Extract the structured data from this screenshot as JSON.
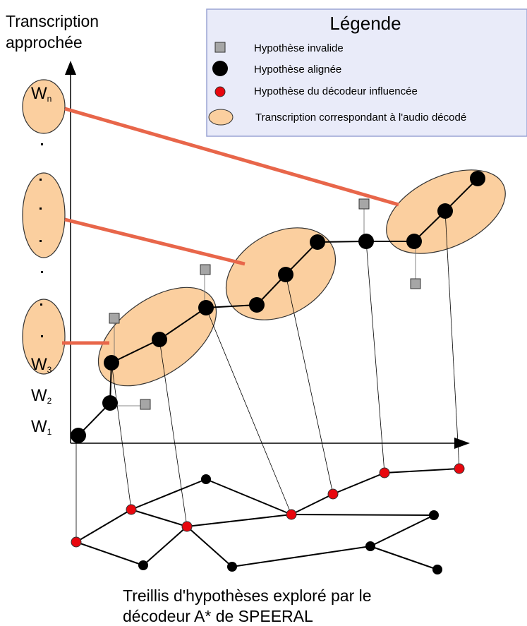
{
  "y_axis_title": [
    "Transcription",
    "approchée"
  ],
  "bottom_caption": [
    "Treillis d'hypothèses exploré par le",
    "décodeur A* de SPEERAL"
  ],
  "y_labels": {
    "wn": {
      "base": "W",
      "sub": "n"
    },
    "w3": {
      "base": "W",
      "sub": "3"
    },
    "w2": {
      "base": "W",
      "sub": "2"
    },
    "w1": {
      "base": "W",
      "sub": "1"
    }
  },
  "legend": {
    "title": "Légende",
    "items": [
      {
        "symbol": "gray-square",
        "label": "Hypothèse invalide"
      },
      {
        "symbol": "black-dot",
        "label": "Hypothèse alignée"
      },
      {
        "symbol": "red-dot",
        "label": "Hypothèse du décodeur influencée"
      },
      {
        "symbol": "orange-ellipse",
        "label": "Transcription correspondant à l'audio décodé"
      }
    ]
  },
  "colors": {
    "ellipse_fill": "#fbcf9f",
    "ellipse_stroke": "#333333",
    "connector": "#e8664a",
    "legend_bg": "#e9ebf9",
    "legend_border": "#9aa4d4",
    "red_node": "#e8070e",
    "gray_node": "#a6a6a6",
    "black_node": "#000000"
  }
}
